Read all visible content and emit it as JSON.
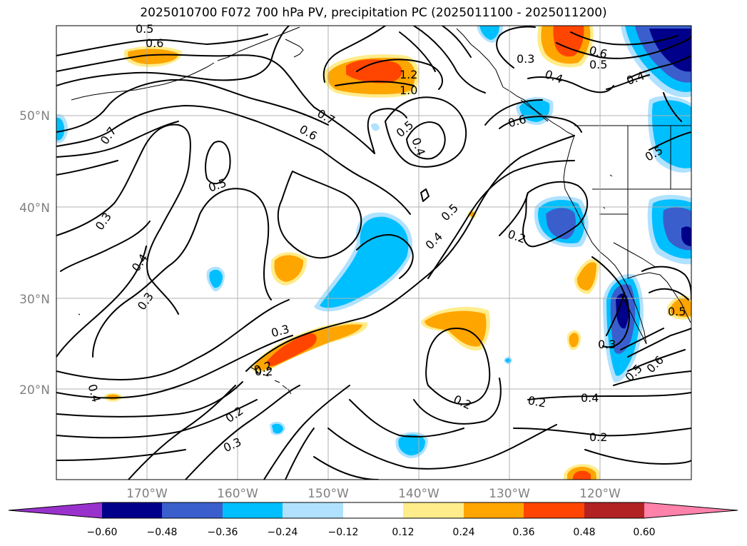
{
  "title": "2025010700 F072 700 hPa PV, precipitation PC (2025011100 - 2025011200)",
  "map": {
    "lat_labels": [
      "50°N",
      "40°N",
      "30°N",
      "20°N"
    ],
    "lon_labels": [
      "170°W",
      "160°W",
      "150°W",
      "140°W",
      "130°W",
      "120°W"
    ],
    "grid": true
  },
  "colorbar": {
    "ticks": [
      "−0.60",
      "−0.48",
      "−0.36",
      "−0.24",
      "−0.12",
      "0.12",
      "0.24",
      "0.36",
      "0.48",
      "0.60"
    ],
    "colors": [
      "#9932cc",
      "#00008b",
      "#3a5fcd",
      "#00bfff",
      "#b0e2ff",
      "#ffffff",
      "#ffec8b",
      "#ffa500",
      "#ff4500",
      "#b22222",
      "#ff82ab"
    ],
    "extend": "both"
  },
  "shading": {
    "colors": {
      "pos1": "#ffec8b",
      "pos2": "#ffa500",
      "pos3": "#ff4500",
      "neg1": "#b0e2ff",
      "neg2": "#00bfff",
      "neg3": "#3a5fcd",
      "neg4": "#00008b"
    }
  },
  "contour_labels": [
    {
      "id": "c1",
      "text": "0.5"
    },
    {
      "id": "c2",
      "text": "0.6"
    },
    {
      "id": "c3",
      "text": "0.7"
    },
    {
      "id": "c4",
      "text": "1.2"
    },
    {
      "id": "c5",
      "text": "1.0"
    },
    {
      "id": "c6",
      "text": "0.7"
    },
    {
      "id": "c7",
      "text": "0.6"
    },
    {
      "id": "c8",
      "text": "0.5"
    },
    {
      "id": "c9",
      "text": "0.4"
    },
    {
      "id": "c10",
      "text": "0.5"
    },
    {
      "id": "c11",
      "text": "0.3"
    },
    {
      "id": "c12",
      "text": "0.4"
    },
    {
      "id": "c13",
      "text": "0.3"
    },
    {
      "id": "c14",
      "text": "0.3"
    },
    {
      "id": "c15",
      "text": "0.2"
    },
    {
      "id": "c16",
      "text": "0.4"
    },
    {
      "id": "c17",
      "text": "0.2"
    },
    {
      "id": "c18",
      "text": "0.3"
    },
    {
      "id": "c19",
      "text": "0.5"
    },
    {
      "id": "c20",
      "text": "0.4"
    },
    {
      "id": "c21",
      "text": "0.2"
    },
    {
      "id": "c22",
      "text": "0.6"
    },
    {
      "id": "c23",
      "text": "0.3"
    },
    {
      "id": "c24",
      "text": "0.4"
    },
    {
      "id": "c25",
      "text": "0.6"
    },
    {
      "id": "c26",
      "text": "0.5"
    },
    {
      "id": "c27",
      "text": "0.4"
    },
    {
      "id": "c28",
      "text": "0.5"
    },
    {
      "id": "c29",
      "text": "0.3"
    },
    {
      "id": "c30",
      "text": "0.5"
    },
    {
      "id": "c31",
      "text": "0.6"
    },
    {
      "id": "c32",
      "text": "0.2"
    },
    {
      "id": "c33",
      "text": "0.2"
    },
    {
      "id": "c34",
      "text": "0.4"
    },
    {
      "id": "c35",
      "text": "0.5"
    },
    {
      "id": "c36",
      "text": "0.2"
    },
    {
      "id": "c37",
      "text": "0.2"
    }
  ]
}
